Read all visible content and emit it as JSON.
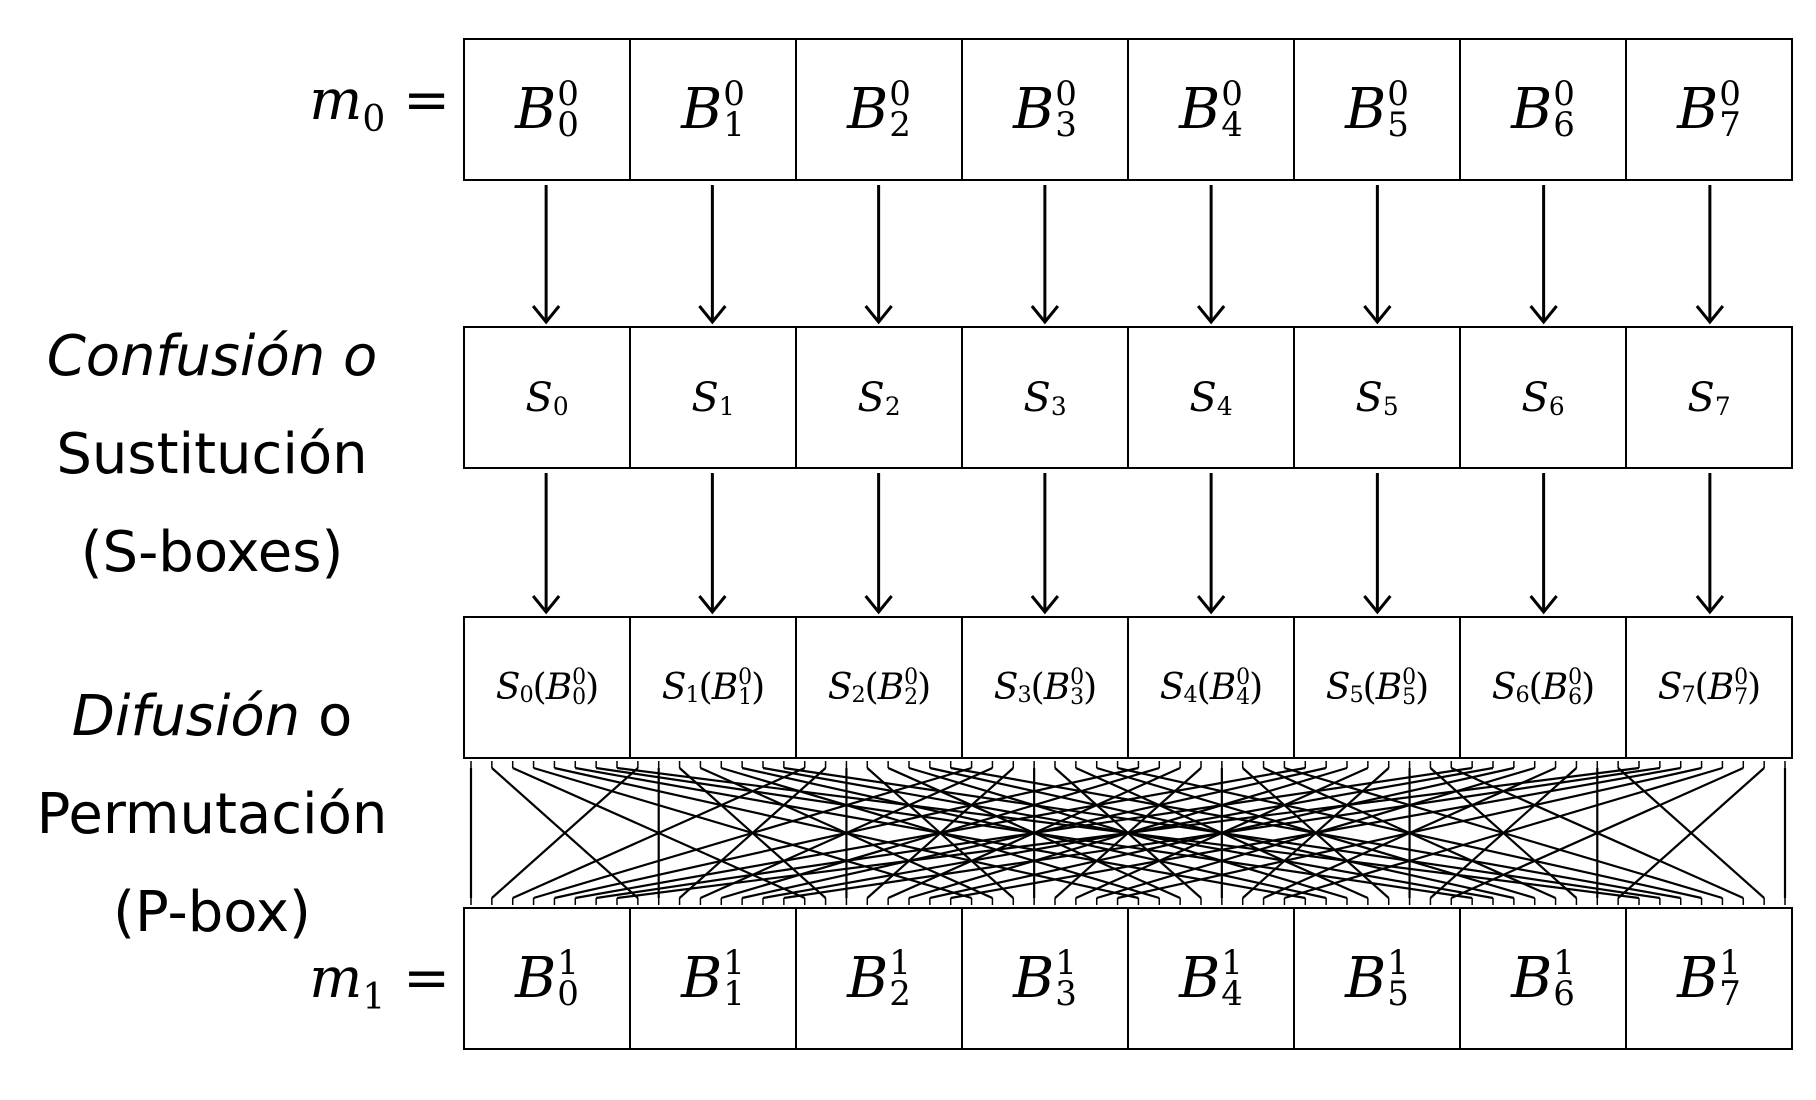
{
  "labels": {
    "m0": "m",
    "m0_sub": "0",
    "m1": "m",
    "m1_sub": "1",
    "eq": "="
  },
  "confusion": {
    "line1": "Confusión o",
    "line2": "Sustitución",
    "line3": "(S-boxes)"
  },
  "diffusion": {
    "line1_italic": "Difusión",
    "line1_rest": " o",
    "line2": "Permutación",
    "line3": "(P-box)"
  },
  "input_blocks": [
    {
      "base": "B",
      "sub": "0",
      "sup": "0"
    },
    {
      "base": "B",
      "sub": "1",
      "sup": "0"
    },
    {
      "base": "B",
      "sub": "2",
      "sup": "0"
    },
    {
      "base": "B",
      "sub": "3",
      "sup": "0"
    },
    {
      "base": "B",
      "sub": "4",
      "sup": "0"
    },
    {
      "base": "B",
      "sub": "5",
      "sup": "0"
    },
    {
      "base": "B",
      "sub": "6",
      "sup": "0"
    },
    {
      "base": "B",
      "sub": "7",
      "sup": "0"
    }
  ],
  "sboxes": [
    {
      "base": "S",
      "sub": "0"
    },
    {
      "base": "S",
      "sub": "1"
    },
    {
      "base": "S",
      "sub": "2"
    },
    {
      "base": "S",
      "sub": "3"
    },
    {
      "base": "S",
      "sub": "4"
    },
    {
      "base": "S",
      "sub": "5"
    },
    {
      "base": "S",
      "sub": "6"
    },
    {
      "base": "S",
      "sub": "7"
    }
  ],
  "sbox_outputs": [
    {
      "s": "S",
      "s_sub": "0",
      "b": "B",
      "b_sub": "0",
      "b_sup": "0"
    },
    {
      "s": "S",
      "s_sub": "1",
      "b": "B",
      "b_sub": "1",
      "b_sup": "0"
    },
    {
      "s": "S",
      "s_sub": "2",
      "b": "B",
      "b_sub": "2",
      "b_sup": "0"
    },
    {
      "s": "S",
      "s_sub": "3",
      "b": "B",
      "b_sub": "3",
      "b_sup": "0"
    },
    {
      "s": "S",
      "s_sub": "4",
      "b": "B",
      "b_sub": "4",
      "b_sup": "0"
    },
    {
      "s": "S",
      "s_sub": "5",
      "b": "B",
      "b_sub": "5",
      "b_sup": "0"
    },
    {
      "s": "S",
      "s_sub": "6",
      "b": "B",
      "b_sub": "6",
      "b_sup": "0"
    },
    {
      "s": "S",
      "s_sub": "7",
      "b": "B",
      "b_sub": "7",
      "b_sup": "0"
    }
  ],
  "output_blocks": [
    {
      "base": "B",
      "sub": "0",
      "sup": "1"
    },
    {
      "base": "B",
      "sub": "1",
      "sup": "1"
    },
    {
      "base": "B",
      "sub": "2",
      "sup": "1"
    },
    {
      "base": "B",
      "sub": "3",
      "sup": "1"
    },
    {
      "base": "B",
      "sub": "4",
      "sup": "1"
    },
    {
      "base": "B",
      "sub": "5",
      "sup": "1"
    },
    {
      "base": "B",
      "sub": "6",
      "sup": "1"
    },
    {
      "base": "B",
      "sub": "7",
      "sup": "1"
    }
  ],
  "colors": {
    "ink": "#000000",
    "background": "#ffffff"
  }
}
